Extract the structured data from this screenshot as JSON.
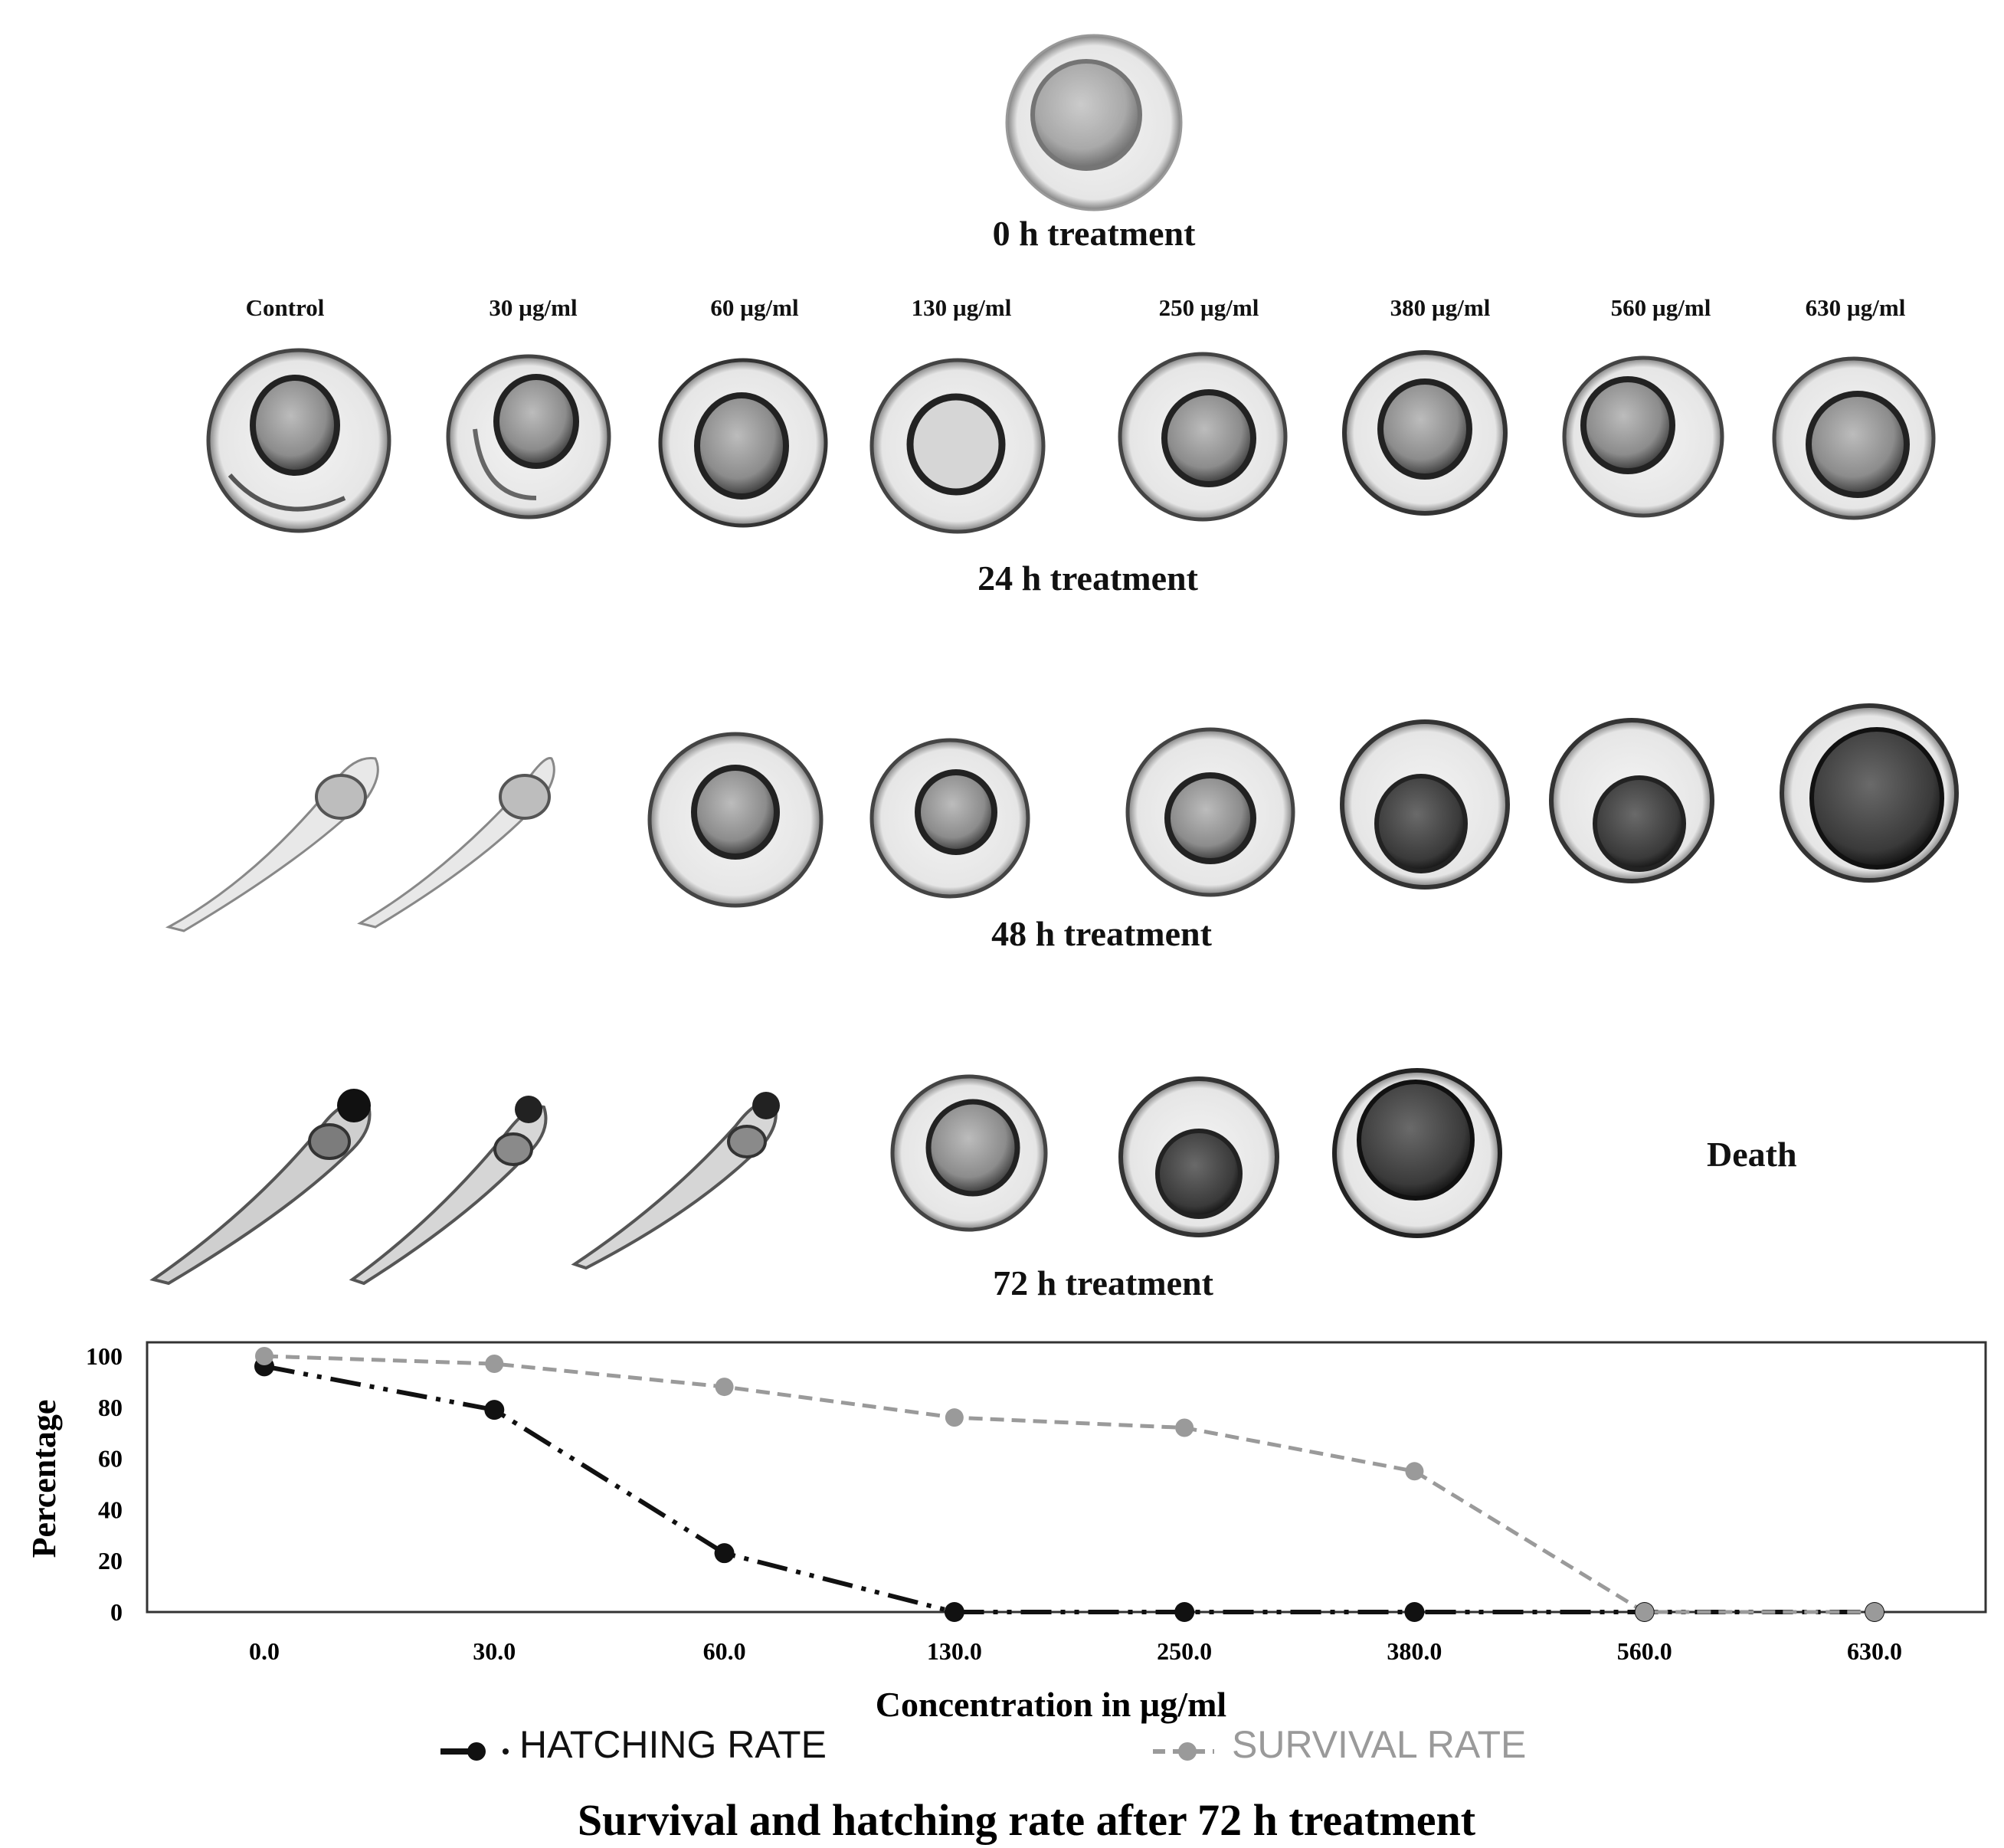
{
  "figure": {
    "row_titles": [
      "0 h treatment",
      "24 h treatment",
      "48 h treatment",
      "72 h treatment"
    ],
    "concentration_labels": [
      "Control",
      "30 µg/ml",
      "60 µg/ml",
      "130 µg/ml",
      "250 µg/ml",
      "380 µg/ml",
      "560 µg/ml",
      "630 µg/ml"
    ],
    "death_label": "Death",
    "chart_title": "Survival and hatching rate after 72 h treatment"
  },
  "chart_data": {
    "type": "line",
    "title": "Survival and hatching rate after 72 h treatment",
    "xlabel": "Concentration in µg/ml",
    "ylabel": "Percentage",
    "categories": [
      "0.0",
      "30.0",
      "60.0",
      "130.0",
      "250.0",
      "380.0",
      "560.0",
      "630.0"
    ],
    "ylim": [
      0,
      100
    ],
    "yticks": [
      "0",
      "20",
      "40",
      "60",
      "80",
      "100"
    ],
    "series": [
      {
        "name": "HATCHING RATE",
        "values": [
          96,
          79,
          23,
          0,
          0,
          0,
          0,
          0
        ],
        "color": "#111111",
        "style": "dash-dot-dot"
      },
      {
        "name": "SURVIVAL RATE",
        "values": [
          100,
          97,
          88,
          76,
          72,
          55,
          0,
          0
        ],
        "color": "#9a9a9a",
        "style": "dashed"
      }
    ],
    "legend_position": "bottom",
    "grid": false
  }
}
